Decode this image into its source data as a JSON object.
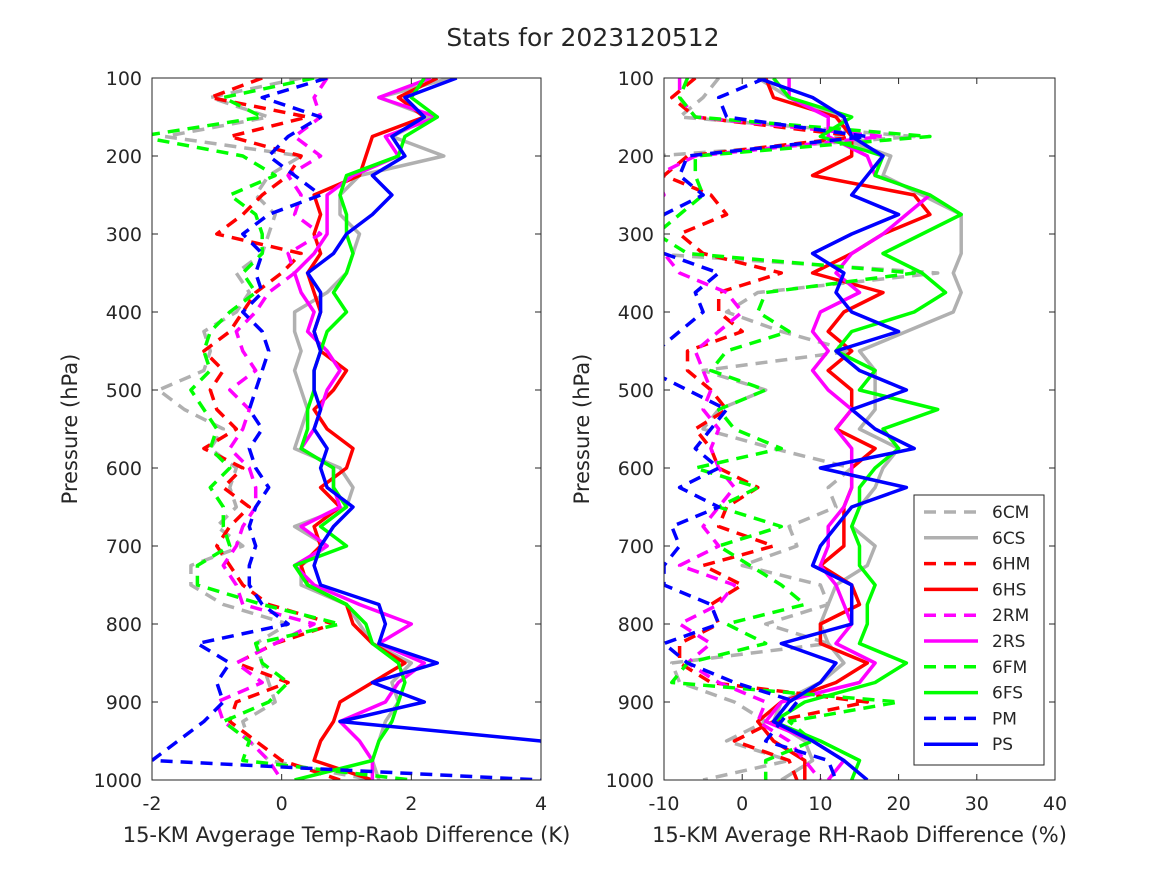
{
  "figure_title": "Stats for 2023120512",
  "colors": {
    "6CM": "#b0b0b0",
    "6CS": "#b0b0b0",
    "6HM": "#ff0000",
    "6HS": "#ff0000",
    "2RM": "#ff00ff",
    "2RS": "#ff00ff",
    "6FM": "#00ff00",
    "6FS": "#00ff00",
    "PM": "#0000ff",
    "PS": "#0000ff"
  },
  "legend": [
    {
      "name": "6CM",
      "style": "dashed"
    },
    {
      "name": "6CS",
      "style": "solid"
    },
    {
      "name": "6HM",
      "style": "dashed"
    },
    {
      "name": "6HS",
      "style": "solid"
    },
    {
      "name": "2RM",
      "style": "dashed"
    },
    {
      "name": "2RS",
      "style": "solid"
    },
    {
      "name": "6FM",
      "style": "dashed"
    },
    {
      "name": "6FS",
      "style": "solid"
    },
    {
      "name": "PM",
      "style": "dashed"
    },
    {
      "name": "PS",
      "style": "solid"
    }
  ],
  "chart_data": [
    {
      "type": "line",
      "xlabel": "15-KM Avgerage Temp-Raob Difference (K)",
      "ylabel": "Pressure (hPa)",
      "xlim": [
        -2,
        4
      ],
      "ylim": [
        100,
        1000
      ],
      "y_reversed": true,
      "xticks": [
        -2,
        0,
        2,
        4
      ],
      "yticks": [
        100,
        200,
        300,
        400,
        500,
        600,
        700,
        800,
        900,
        1000
      ],
      "pressure": [
        100,
        125,
        150,
        175,
        200,
        225,
        250,
        275,
        300,
        325,
        350,
        375,
        400,
        425,
        450,
        475,
        500,
        525,
        550,
        575,
        600,
        625,
        650,
        675,
        700,
        725,
        750,
        775,
        800,
        825,
        850,
        875,
        900,
        925,
        950,
        975,
        1000
      ],
      "series": [
        {
          "name": "6CM",
          "style": "dashed",
          "values": [
            0.3,
            -1.1,
            -0.2,
            -1.8,
            0.3,
            -0.2,
            -0.4,
            -0.1,
            -0.2,
            -0.3,
            -0.7,
            -0.5,
            -0.7,
            -1.2,
            -1.1,
            -1.2,
            -1.9,
            -1.5,
            -0.9,
            -1.1,
            -0.7,
            -0.8,
            -0.7,
            -1.0,
            -0.6,
            -1.4,
            -1.4,
            -0.9,
            0.1,
            -0.4,
            -0.3,
            -0.2,
            -0.1,
            -0.6,
            -0.5,
            -0.2,
            1.4
          ]
        },
        {
          "name": "6CS",
          "style": "solid",
          "values": [
            2.6,
            1.5,
            2.3,
            1.7,
            2.5,
            1.2,
            0.9,
            0.9,
            1.2,
            1.1,
            1.0,
            0.7,
            0.2,
            0.2,
            0.3,
            0.2,
            0.3,
            0.4,
            0.3,
            0.2,
            0.9,
            1.1,
            1.0,
            0.2,
            0.7,
            0.3,
            0.3,
            1.0,
            1.2,
            1.4,
            2.0,
            1.7,
            1.8,
            1.6,
            1.5,
            1.4,
            1.5
          ]
        },
        {
          "name": "6HM",
          "style": "dashed",
          "values": [
            -0.3,
            -1.1,
            0.4,
            -0.8,
            0.3,
            0.1,
            -0.3,
            -0.6,
            -1.0,
            0.3,
            0.0,
            -0.4,
            -0.6,
            -0.8,
            -1.2,
            -0.9,
            -1.1,
            -1.0,
            -0.7,
            -1.2,
            -0.6,
            -0.9,
            -0.5,
            -0.8,
            -1.0,
            -0.8,
            -0.6,
            -0.2,
            0.8,
            -0.1,
            -0.7,
            0.1,
            -0.7,
            -0.8,
            -0.4,
            0.0,
            0.9
          ]
        },
        {
          "name": "6HS",
          "style": "solid",
          "values": [
            2.4,
            1.8,
            2.2,
            1.4,
            1.3,
            1.2,
            0.5,
            0.6,
            0.5,
            0.6,
            0.4,
            0.5,
            0.6,
            0.5,
            0.6,
            1.0,
            0.8,
            0.5,
            0.7,
            1.1,
            1.0,
            0.6,
            0.9,
            0.5,
            0.6,
            0.3,
            0.4,
            1.0,
            1.1,
            1.4,
            1.9,
            1.4,
            0.9,
            0.8,
            0.6,
            0.5,
            1.4
          ]
        },
        {
          "name": "2RM",
          "style": "dashed",
          "values": [
            0.7,
            0.5,
            0.6,
            0.2,
            0.6,
            0.1,
            0.3,
            0.2,
            0.6,
            0.1,
            0.2,
            -0.2,
            -0.4,
            -0.7,
            -0.6,
            -0.4,
            -0.8,
            -0.5,
            -0.6,
            -0.8,
            -0.5,
            -0.4,
            -0.4,
            -0.6,
            -0.7,
            -0.9,
            -0.7,
            -0.6,
            0.5,
            -0.1,
            -0.7,
            -0.3,
            -1.0,
            -0.9,
            -0.5,
            -0.2,
            0.0
          ]
        },
        {
          "name": "2RS",
          "style": "solid",
          "values": [
            2.3,
            1.5,
            2.4,
            1.6,
            1.8,
            1.1,
            0.7,
            0.7,
            0.7,
            0.5,
            0.2,
            0.3,
            0.5,
            0.4,
            0.7,
            0.9,
            0.7,
            0.6,
            0.5,
            0.3,
            0.8,
            0.8,
            0.9,
            0.3,
            0.7,
            0.2,
            0.5,
            1.2,
            2.0,
            1.5,
            2.2,
            1.8,
            1.6,
            0.9,
            1.2,
            1.4,
            1.4
          ]
        },
        {
          "name": "6FM",
          "style": "dashed",
          "values": [
            0.5,
            -0.9,
            -0.3,
            -2.2,
            -0.6,
            -0.1,
            -0.8,
            -0.4,
            -0.3,
            -0.3,
            -0.6,
            -0.4,
            -0.8,
            -1.1,
            -1.2,
            -1.1,
            -1.4,
            -1.2,
            -1.0,
            -1.1,
            -0.8,
            -1.1,
            -0.9,
            -0.9,
            -0.8,
            -1.3,
            -1.3,
            -0.3,
            0.9,
            -0.4,
            -0.3,
            0.1,
            -0.2,
            -0.9,
            -0.5,
            -0.6,
            2.0
          ]
        },
        {
          "name": "6FS",
          "style": "solid",
          "values": [
            2.2,
            2.0,
            2.4,
            1.9,
            1.8,
            1.0,
            0.9,
            1.0,
            1.0,
            1.1,
            1.0,
            0.8,
            1.0,
            0.7,
            0.6,
            0.5,
            0.5,
            0.4,
            0.4,
            0.3,
            0.8,
            0.8,
            1.0,
            0.6,
            1.0,
            0.2,
            0.4,
            1.0,
            1.3,
            1.4,
            1.8,
            1.9,
            1.8,
            1.7,
            1.5,
            1.4,
            0.2
          ]
        },
        {
          "name": "PM",
          "style": "dashed",
          "values": [
            0.7,
            -0.3,
            0.6,
            0.1,
            -0.2,
            0.2,
            0.6,
            -0.2,
            -0.6,
            -0.3,
            -0.4,
            -0.3,
            -0.6,
            -0.3,
            -0.2,
            -0.3,
            -0.4,
            -0.5,
            -0.3,
            -0.5,
            -0.4,
            -0.2,
            -0.4,
            -0.5,
            -0.4,
            -0.5,
            -0.5,
            -0.3,
            0.1,
            -1.3,
            -0.8,
            -1.0,
            -0.9,
            -1.2,
            -1.6,
            -2.0,
            4.0
          ]
        },
        {
          "name": "PS",
          "style": "solid",
          "values": [
            2.7,
            1.9,
            2.2,
            1.7,
            1.9,
            1.4,
            1.7,
            1.4,
            1.0,
            0.8,
            0.4,
            0.6,
            0.6,
            0.5,
            0.6,
            0.5,
            0.5,
            0.6,
            0.5,
            0.7,
            0.6,
            0.7,
            1.1,
            0.8,
            0.6,
            0.5,
            0.6,
            1.5,
            1.6,
            1.5,
            2.4,
            1.4,
            2.2,
            0.9,
            4.0,
            4.2,
            4.2
          ]
        }
      ]
    },
    {
      "type": "line",
      "xlabel": "15-KM Average RH-Raob Difference (%)",
      "ylabel": "Pressure (hPa)",
      "xlim": [
        -10,
        40
      ],
      "ylim": [
        100,
        1000
      ],
      "y_reversed": true,
      "xticks": [
        -10,
        0,
        10,
        20,
        30,
        40
      ],
      "yticks": [
        100,
        200,
        300,
        400,
        500,
        600,
        700,
        800,
        900,
        1000
      ],
      "legend_position": "lower-right",
      "pressure": [
        100,
        125,
        150,
        175,
        200,
        225,
        250,
        275,
        300,
        325,
        350,
        375,
        400,
        425,
        450,
        475,
        500,
        525,
        550,
        575,
        600,
        625,
        650,
        675,
        700,
        725,
        750,
        775,
        800,
        825,
        850,
        875,
        900,
        925,
        950,
        975,
        1000
      ],
      "series": [
        {
          "name": "6CM",
          "style": "dashed",
          "values": [
            -3,
            -5,
            -8,
            22,
            -11,
            -10,
            -13,
            -10,
            -12,
            -12,
            25,
            2,
            -2,
            5,
            14,
            -5,
            3,
            -3,
            -5,
            4,
            14,
            11,
            12,
            6,
            7,
            0,
            10,
            11,
            3,
            11,
            -9,
            -8,
            -1,
            3,
            -2,
            6,
            -5
          ]
        },
        {
          "name": "6CS",
          "style": "solid",
          "values": [
            2,
            6,
            13,
            12,
            19,
            18,
            23,
            28,
            28,
            28,
            27,
            28,
            27,
            21,
            15,
            17,
            17,
            17,
            15,
            20,
            18,
            17,
            15,
            14,
            17,
            16,
            12,
            11,
            10,
            11,
            13,
            10,
            5,
            4,
            8,
            9,
            5
          ]
        },
        {
          "name": "6HM",
          "style": "dashed",
          "values": [
            -6,
            -9,
            -6,
            15,
            -7,
            -10,
            -4,
            -2,
            -8,
            -5,
            5,
            -3,
            -3,
            0,
            -7,
            -7,
            -4,
            -2,
            -6,
            -4,
            -3,
            2,
            -2,
            -3,
            4,
            -5,
            0,
            -4,
            -3,
            -8,
            -8,
            -4,
            16,
            4,
            -1,
            6,
            7
          ]
        },
        {
          "name": "6HS",
          "style": "solid",
          "values": [
            3,
            4,
            12,
            14,
            14,
            9,
            22,
            24,
            18,
            14,
            9,
            18,
            13,
            11,
            14,
            11,
            14,
            14,
            12,
            17,
            14,
            14,
            13,
            13,
            13,
            10,
            14,
            15,
            10,
            10,
            16,
            12,
            5,
            2,
            4,
            8,
            8
          ]
        },
        {
          "name": "2RM",
          "style": "dashed",
          "values": [
            -8,
            -8,
            -6,
            18,
            -6,
            -11,
            -10,
            -12,
            -12,
            -10,
            -8,
            -2,
            0,
            -3,
            -6,
            -5,
            -4,
            -5,
            -3,
            -4,
            -3,
            -1,
            -3,
            -5,
            -3,
            -8,
            -1,
            -3,
            -8,
            -4,
            -7,
            -3,
            3,
            2,
            6,
            8,
            10
          ]
        },
        {
          "name": "2RS",
          "style": "solid",
          "values": [
            6,
            6,
            11,
            11,
            16,
            17,
            24,
            21,
            18,
            14,
            12,
            15,
            10,
            9,
            11,
            9,
            11,
            14,
            12,
            14,
            14,
            14,
            13,
            11,
            11,
            10,
            12,
            13,
            14,
            12,
            17,
            15,
            5,
            3,
            9,
            13,
            11
          ]
        },
        {
          "name": "6FM",
          "style": "dashed",
          "values": [
            -7,
            -8,
            -6,
            24,
            -6,
            -6,
            -5,
            -8,
            -11,
            -7,
            22,
            3,
            2,
            6,
            -2,
            -4,
            3,
            -3,
            -1,
            5,
            -6,
            2,
            -3,
            5,
            -3,
            1,
            5,
            8,
            -2,
            3,
            -7,
            -9,
            20,
            6,
            9,
            3,
            3
          ]
        },
        {
          "name": "6FS",
          "style": "solid",
          "values": [
            4,
            6,
            14,
            10,
            18,
            17,
            24,
            28,
            23,
            18,
            23,
            26,
            22,
            14,
            12,
            17,
            15,
            25,
            18,
            20,
            17,
            15,
            15,
            14,
            15,
            15,
            17,
            16,
            16,
            15,
            21,
            17,
            8,
            4,
            10,
            15,
            14
          ]
        },
        {
          "name": "PM",
          "style": "dashed",
          "values": [
            3,
            -3,
            -2,
            16,
            -7,
            -8,
            -5,
            -10,
            -12,
            -10,
            -3,
            -6,
            -5,
            -8,
            -11,
            -12,
            -7,
            -2,
            -4,
            -6,
            -3,
            -8,
            -3,
            -9,
            -8,
            -10,
            -10,
            -4,
            -3,
            -10,
            -7,
            -1,
            7,
            5,
            3,
            11,
            12
          ]
        },
        {
          "name": "PS",
          "style": "solid",
          "values": [
            2,
            9,
            13,
            14,
            18,
            16,
            14,
            20,
            14,
            9,
            13,
            12,
            14,
            20,
            12,
            15,
            21,
            14,
            17,
            22,
            10,
            21,
            14,
            12,
            10,
            9,
            14,
            14,
            14,
            5,
            12,
            10,
            6,
            4,
            9,
            13,
            16
          ]
        }
      ]
    }
  ]
}
